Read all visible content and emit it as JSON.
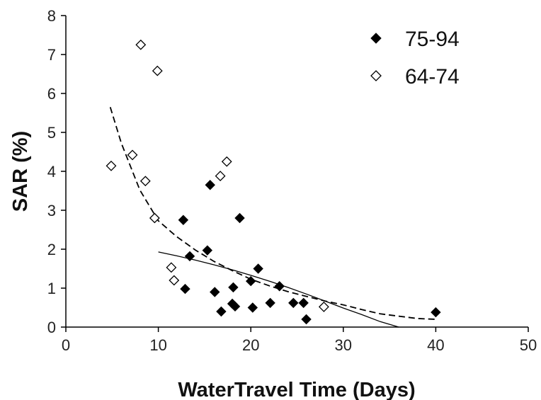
{
  "chart_data": {
    "type": "scatter",
    "title": "",
    "xlabel": "WaterTravel Time (Days)",
    "ylabel": "SAR (%)",
    "xlim": [
      0,
      50
    ],
    "ylim": [
      0,
      8
    ],
    "xticks": [
      0,
      10,
      20,
      30,
      40,
      50
    ],
    "yticks": [
      0,
      1,
      2,
      3,
      4,
      5,
      6,
      7,
      8
    ],
    "grid": false,
    "legend_position": "top-right",
    "series": [
      {
        "name": "75-94",
        "marker": "diamond-filled",
        "color": "#000000",
        "points": [
          [
            12.7,
            2.75
          ],
          [
            12.9,
            0.98
          ],
          [
            13.4,
            1.82
          ],
          [
            15.3,
            1.97
          ],
          [
            15.6,
            3.65
          ],
          [
            16.1,
            0.9
          ],
          [
            16.8,
            0.4
          ],
          [
            18.0,
            0.6
          ],
          [
            18.1,
            1.02
          ],
          [
            18.3,
            0.53
          ],
          [
            18.8,
            2.8
          ],
          [
            20.0,
            1.18
          ],
          [
            20.2,
            0.5
          ],
          [
            20.8,
            1.5
          ],
          [
            22.1,
            0.62
          ],
          [
            23.1,
            1.05
          ],
          [
            24.6,
            0.62
          ],
          [
            25.7,
            0.62
          ],
          [
            26.0,
            0.2
          ],
          [
            40.0,
            0.38
          ]
        ]
      },
      {
        "name": "64-74",
        "marker": "diamond-open",
        "color": "#000000",
        "points": [
          [
            4.9,
            4.14
          ],
          [
            7.2,
            4.42
          ],
          [
            8.1,
            7.25
          ],
          [
            8.6,
            3.75
          ],
          [
            9.6,
            2.8
          ],
          [
            9.9,
            6.58
          ],
          [
            11.4,
            1.53
          ],
          [
            11.7,
            1.2
          ],
          [
            16.7,
            3.88
          ],
          [
            17.4,
            4.25
          ],
          [
            27.9,
            0.52
          ]
        ]
      }
    ],
    "trendlines": [
      {
        "series": "75-94",
        "style": "solid",
        "x": [
          10,
          12,
          14,
          16,
          18,
          20,
          22,
          24,
          26,
          28,
          30,
          32,
          34,
          36
        ],
        "y": [
          1.93,
          1.83,
          1.72,
          1.6,
          1.47,
          1.33,
          1.18,
          1.02,
          0.85,
          0.67,
          0.49,
          0.32,
          0.14,
          0.0
        ]
      },
      {
        "series": "64-74",
        "style": "dashed",
        "x": [
          4.8,
          6,
          8,
          10,
          12,
          14,
          16,
          18,
          20,
          22,
          24,
          26,
          28,
          30,
          32,
          34,
          36,
          38,
          40
        ],
        "y": [
          5.65,
          4.72,
          3.52,
          2.73,
          2.32,
          1.98,
          1.69,
          1.45,
          1.23,
          1.06,
          0.91,
          0.79,
          0.67,
          0.57,
          0.45,
          0.34,
          0.28,
          0.22,
          0.2
        ]
      }
    ]
  }
}
